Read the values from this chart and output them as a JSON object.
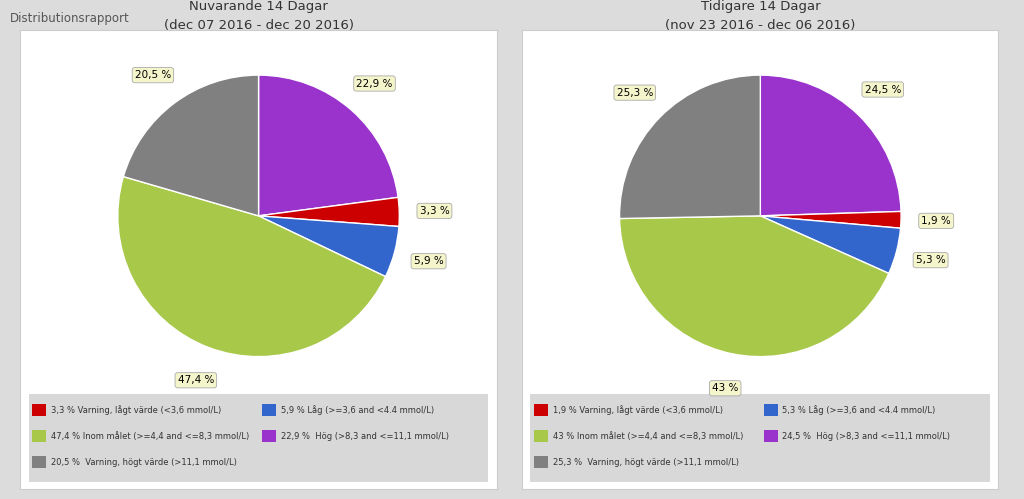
{
  "background_color": "#dcdcdc",
  "card_color": "#ffffff",
  "header_text": "Distributionsrapport",
  "header_fontsize": 8.5,
  "charts": [
    {
      "title": "Nuvarande 14 Dagar",
      "subtitle": "(dec 07 2016 - dec 20 2016)",
      "values": [
        22.9,
        3.3,
        5.9,
        47.4,
        20.5
      ],
      "labels": [
        "22,9 %",
        "3,3 %",
        "5,9 %",
        "47,4 %",
        "20,5 %"
      ],
      "colors": [
        "#9933cc",
        "#cc0000",
        "#3366cc",
        "#a8c84a",
        "#808080"
      ],
      "legend_entries": [
        [
          "3,3 % Varning, lågt värde (<3,6 mmol/L)",
          "#cc0000"
        ],
        [
          "5,9 % Låg (>=3,6 and <4.4 mmol/L)",
          "#3366cc"
        ],
        [
          "47,4 % Inom målet (>=4,4 and <=8,3 mmol/L)",
          "#a8c84a"
        ],
        [
          "22,9 %  Hög (>8,3 and <=11,1 mmol/L)",
          "#9933cc"
        ],
        [
          "20,5 %  Varning, högt värde (>11,1 mmol/L)",
          "#808080"
        ]
      ]
    },
    {
      "title": "Tidigare 14 Dagar",
      "subtitle": "(nov 23 2016 - dec 06 2016)",
      "values": [
        24.5,
        1.9,
        5.3,
        43.0,
        25.3
      ],
      "labels": [
        "24,5 %",
        "1,9 %",
        "5,3 %",
        "43 %",
        "25,3 %"
      ],
      "colors": [
        "#9933cc",
        "#cc0000",
        "#3366cc",
        "#a8c84a",
        "#808080"
      ],
      "legend_entries": [
        [
          "1,9 % Varning, lågt värde (<3,6 mmol/L)",
          "#cc0000"
        ],
        [
          "5,3 % Låg (>=3,6 and <4.4 mmol/L)",
          "#3366cc"
        ],
        [
          "43 % Inom målet (>=4,4 and <=8,3 mmol/L)",
          "#a8c84a"
        ],
        [
          "24,5 %  Hög (>8,3 and <=11,1 mmol/L)",
          "#9933cc"
        ],
        [
          "25,3 %  Varning, högt värde (>11,1 mmol/L)",
          "#808080"
        ]
      ]
    }
  ]
}
